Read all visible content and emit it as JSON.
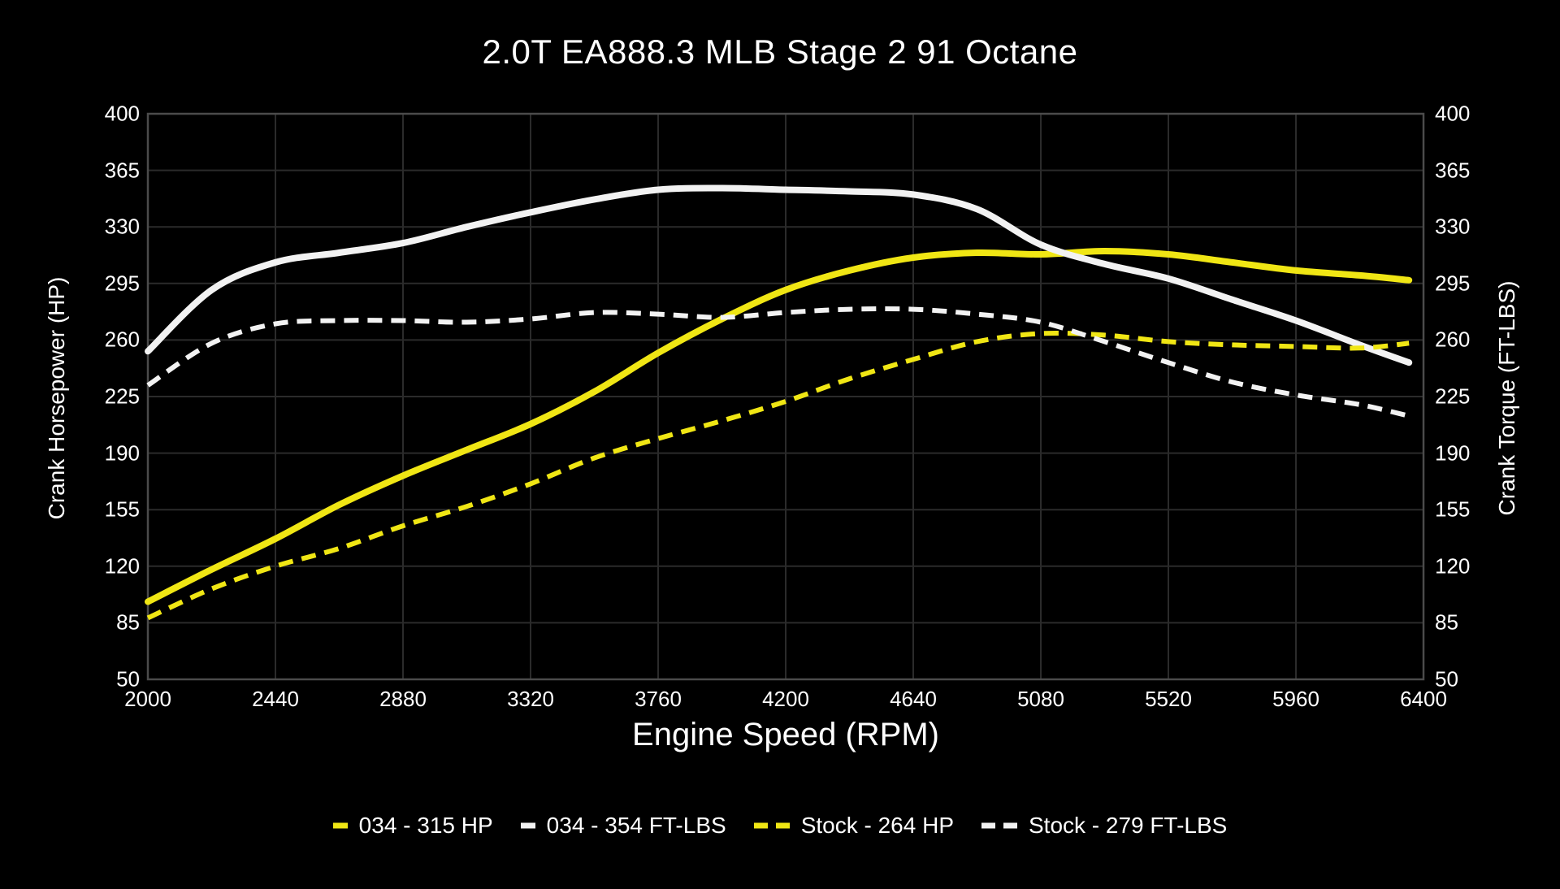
{
  "chart_data": {
    "type": "line",
    "title": "2.0T EA888.3 MLB Stage 2 91 Octane",
    "xlabel": "Engine Speed (RPM)",
    "ylabel_left": "Crank Horsepower (HP)",
    "ylabel_right": "Crank Torque (FT-LBS)",
    "x_range": [
      2000,
      6400
    ],
    "y_range": [
      50,
      400
    ],
    "x_ticks": [
      2000,
      2440,
      2880,
      3320,
      3760,
      4200,
      4640,
      5080,
      5520,
      5960,
      6400
    ],
    "y_ticks": [
      50,
      85,
      120,
      155,
      190,
      225,
      260,
      295,
      330,
      365,
      400
    ],
    "grid": true,
    "legend_position": "bottom",
    "x": [
      2000,
      2220,
      2440,
      2660,
      2880,
      3100,
      3320,
      3540,
      3760,
      3980,
      4200,
      4420,
      4640,
      4860,
      5080,
      5300,
      5520,
      5740,
      5960,
      6180,
      6350
    ],
    "series": [
      {
        "name": "034 - 315 HP",
        "color": "#f0e614",
        "style": "solid",
        "peak": 315,
        "values": [
          98,
          118,
          137,
          158,
          176,
          192,
          208,
          228,
          252,
          273,
          291,
          303,
          311,
          314,
          313,
          315,
          313,
          308,
          303,
          300,
          297
        ]
      },
      {
        "name": "034 - 354 FT-LBS",
        "color": "#f2f2f2",
        "style": "solid",
        "peak": 354,
        "values": [
          253,
          291,
          308,
          314,
          320,
          330,
          339,
          347,
          353,
          354,
          353,
          352,
          350,
          341,
          319,
          307,
          298,
          285,
          272,
          257,
          246
        ]
      },
      {
        "name": "Stock - 264 HP",
        "color": "#f0e614",
        "style": "dashed",
        "peak": 264,
        "values": [
          88,
          106,
          120,
          131,
          145,
          157,
          171,
          187,
          199,
          210,
          222,
          236,
          248,
          259,
          264,
          263,
          259,
          257,
          256,
          255,
          258
        ]
      },
      {
        "name": "Stock - 279 FT-LBS",
        "color": "#f2f2f2",
        "style": "dashed",
        "peak": 279,
        "values": [
          232,
          258,
          270,
          272,
          272,
          271,
          273,
          277,
          276,
          274,
          277,
          279,
          279,
          276,
          271,
          259,
          246,
          234,
          226,
          220,
          213
        ]
      }
    ]
  },
  "colors": {
    "background": "#000000",
    "text": "#ffffff",
    "grid": "#2b2b2b",
    "axis_border": "#4b4b4b"
  }
}
